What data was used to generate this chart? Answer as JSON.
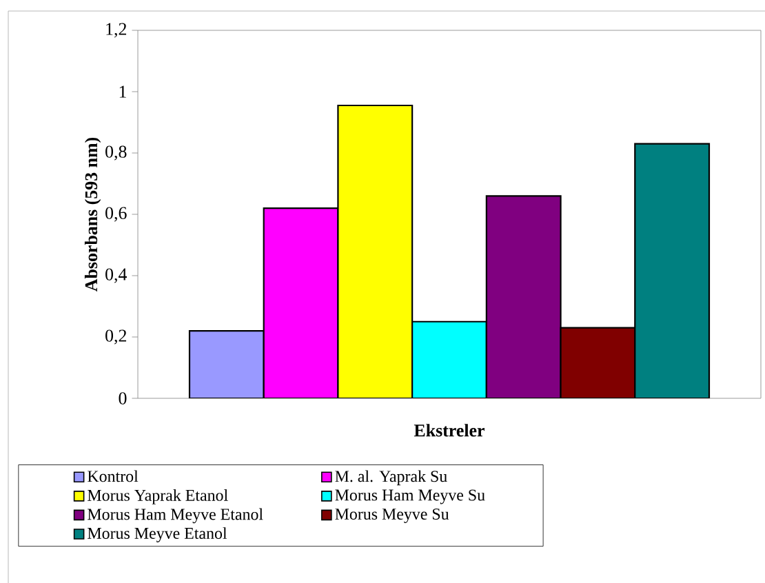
{
  "chart_data": {
    "type": "bar",
    "xlabel": "Ekstreler",
    "ylabel": "Absorbans (593 nm)",
    "categories": [
      null
    ],
    "series": [
      {
        "name": "Kontrol",
        "color": "#9999ff",
        "values": [
          0.22
        ]
      },
      {
        "name": "M. al. Yaprak Su",
        "color": "#ff00ff",
        "values": [
          0.62
        ]
      },
      {
        "name": "Morus Yaprak Etanol",
        "color": "#ffff00",
        "values": [
          0.955
        ]
      },
      {
        "name": "Morus Ham Meyve Su",
        "color": "#00ffff",
        "values": [
          0.25
        ]
      },
      {
        "name": "Morus Ham Meyve Etanol",
        "color": "#800080",
        "values": [
          0.66
        ]
      },
      {
        "name": "Morus Meyve Su",
        "color": "#800000",
        "values": [
          0.23
        ]
      },
      {
        "name": "Morus Meyve Etanol",
        "color": "#008080",
        "values": [
          0.83
        ]
      }
    ],
    "ylim": [
      0,
      1.2
    ],
    "yticks": [
      0,
      {
        "value": 0.2,
        "label": "0,2"
      },
      {
        "value": 0.4,
        "label": "0,4"
      },
      {
        "value": 0.6,
        "label": "0,6"
      },
      {
        "value": 0.8,
        "label": "0,8"
      },
      1,
      {
        "value": 1.2,
        "label": "1,2"
      }
    ],
    "legend": "bottom"
  }
}
